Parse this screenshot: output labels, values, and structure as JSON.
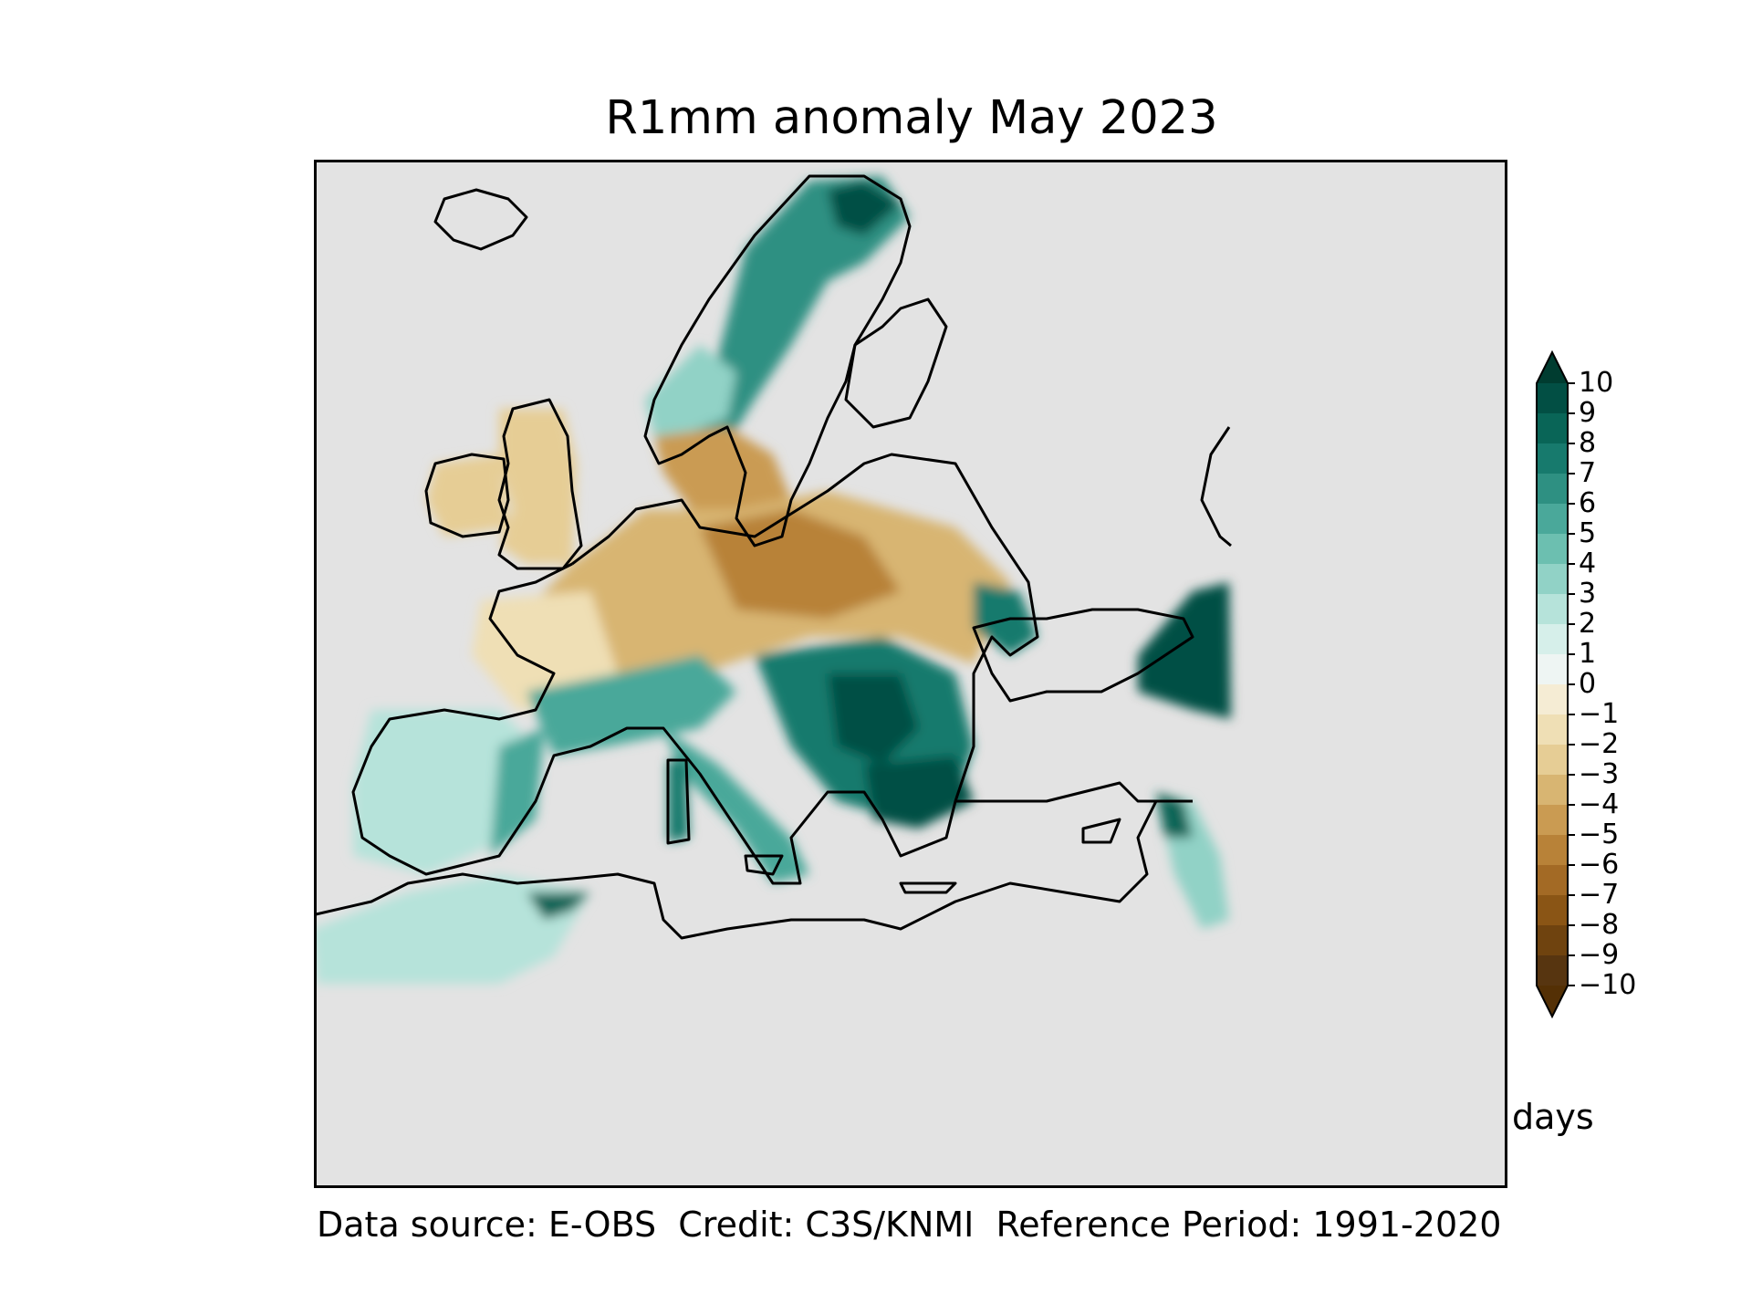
{
  "title": "R1mm anomaly May 2023",
  "footer": "Data source: E-OBS  Credit: C3S/KNMI  Reference Period: 1991-2020",
  "units": "days",
  "colorbar": {
    "min": -10,
    "max": 10,
    "ticks": [
      "10",
      "9",
      "8",
      "7",
      "6",
      "5",
      "4",
      "3",
      "2",
      "1",
      "0",
      "−1",
      "−2",
      "−3",
      "−4",
      "−5",
      "−6",
      "−7",
      "−8",
      "−9",
      "−10"
    ],
    "colors": [
      "#573510",
      "#6f430f",
      "#8a5515",
      "#a36a25",
      "#b88238",
      "#ca9b52",
      "#d8b572",
      "#e6cd95",
      "#efdfb5",
      "#f5ecd4",
      "#eef5f3",
      "#d6efea",
      "#b6e3da",
      "#91d2c6",
      "#6cbfb0",
      "#4aa89a",
      "#2e9082",
      "#177a6d",
      "#096557",
      "#024f44"
    ],
    "extend_low_color": "#543005",
    "extend_high_color": "#003c30"
  },
  "colors": {
    "ocean": "#e3e3e3",
    "coast": "#000000"
  }
}
